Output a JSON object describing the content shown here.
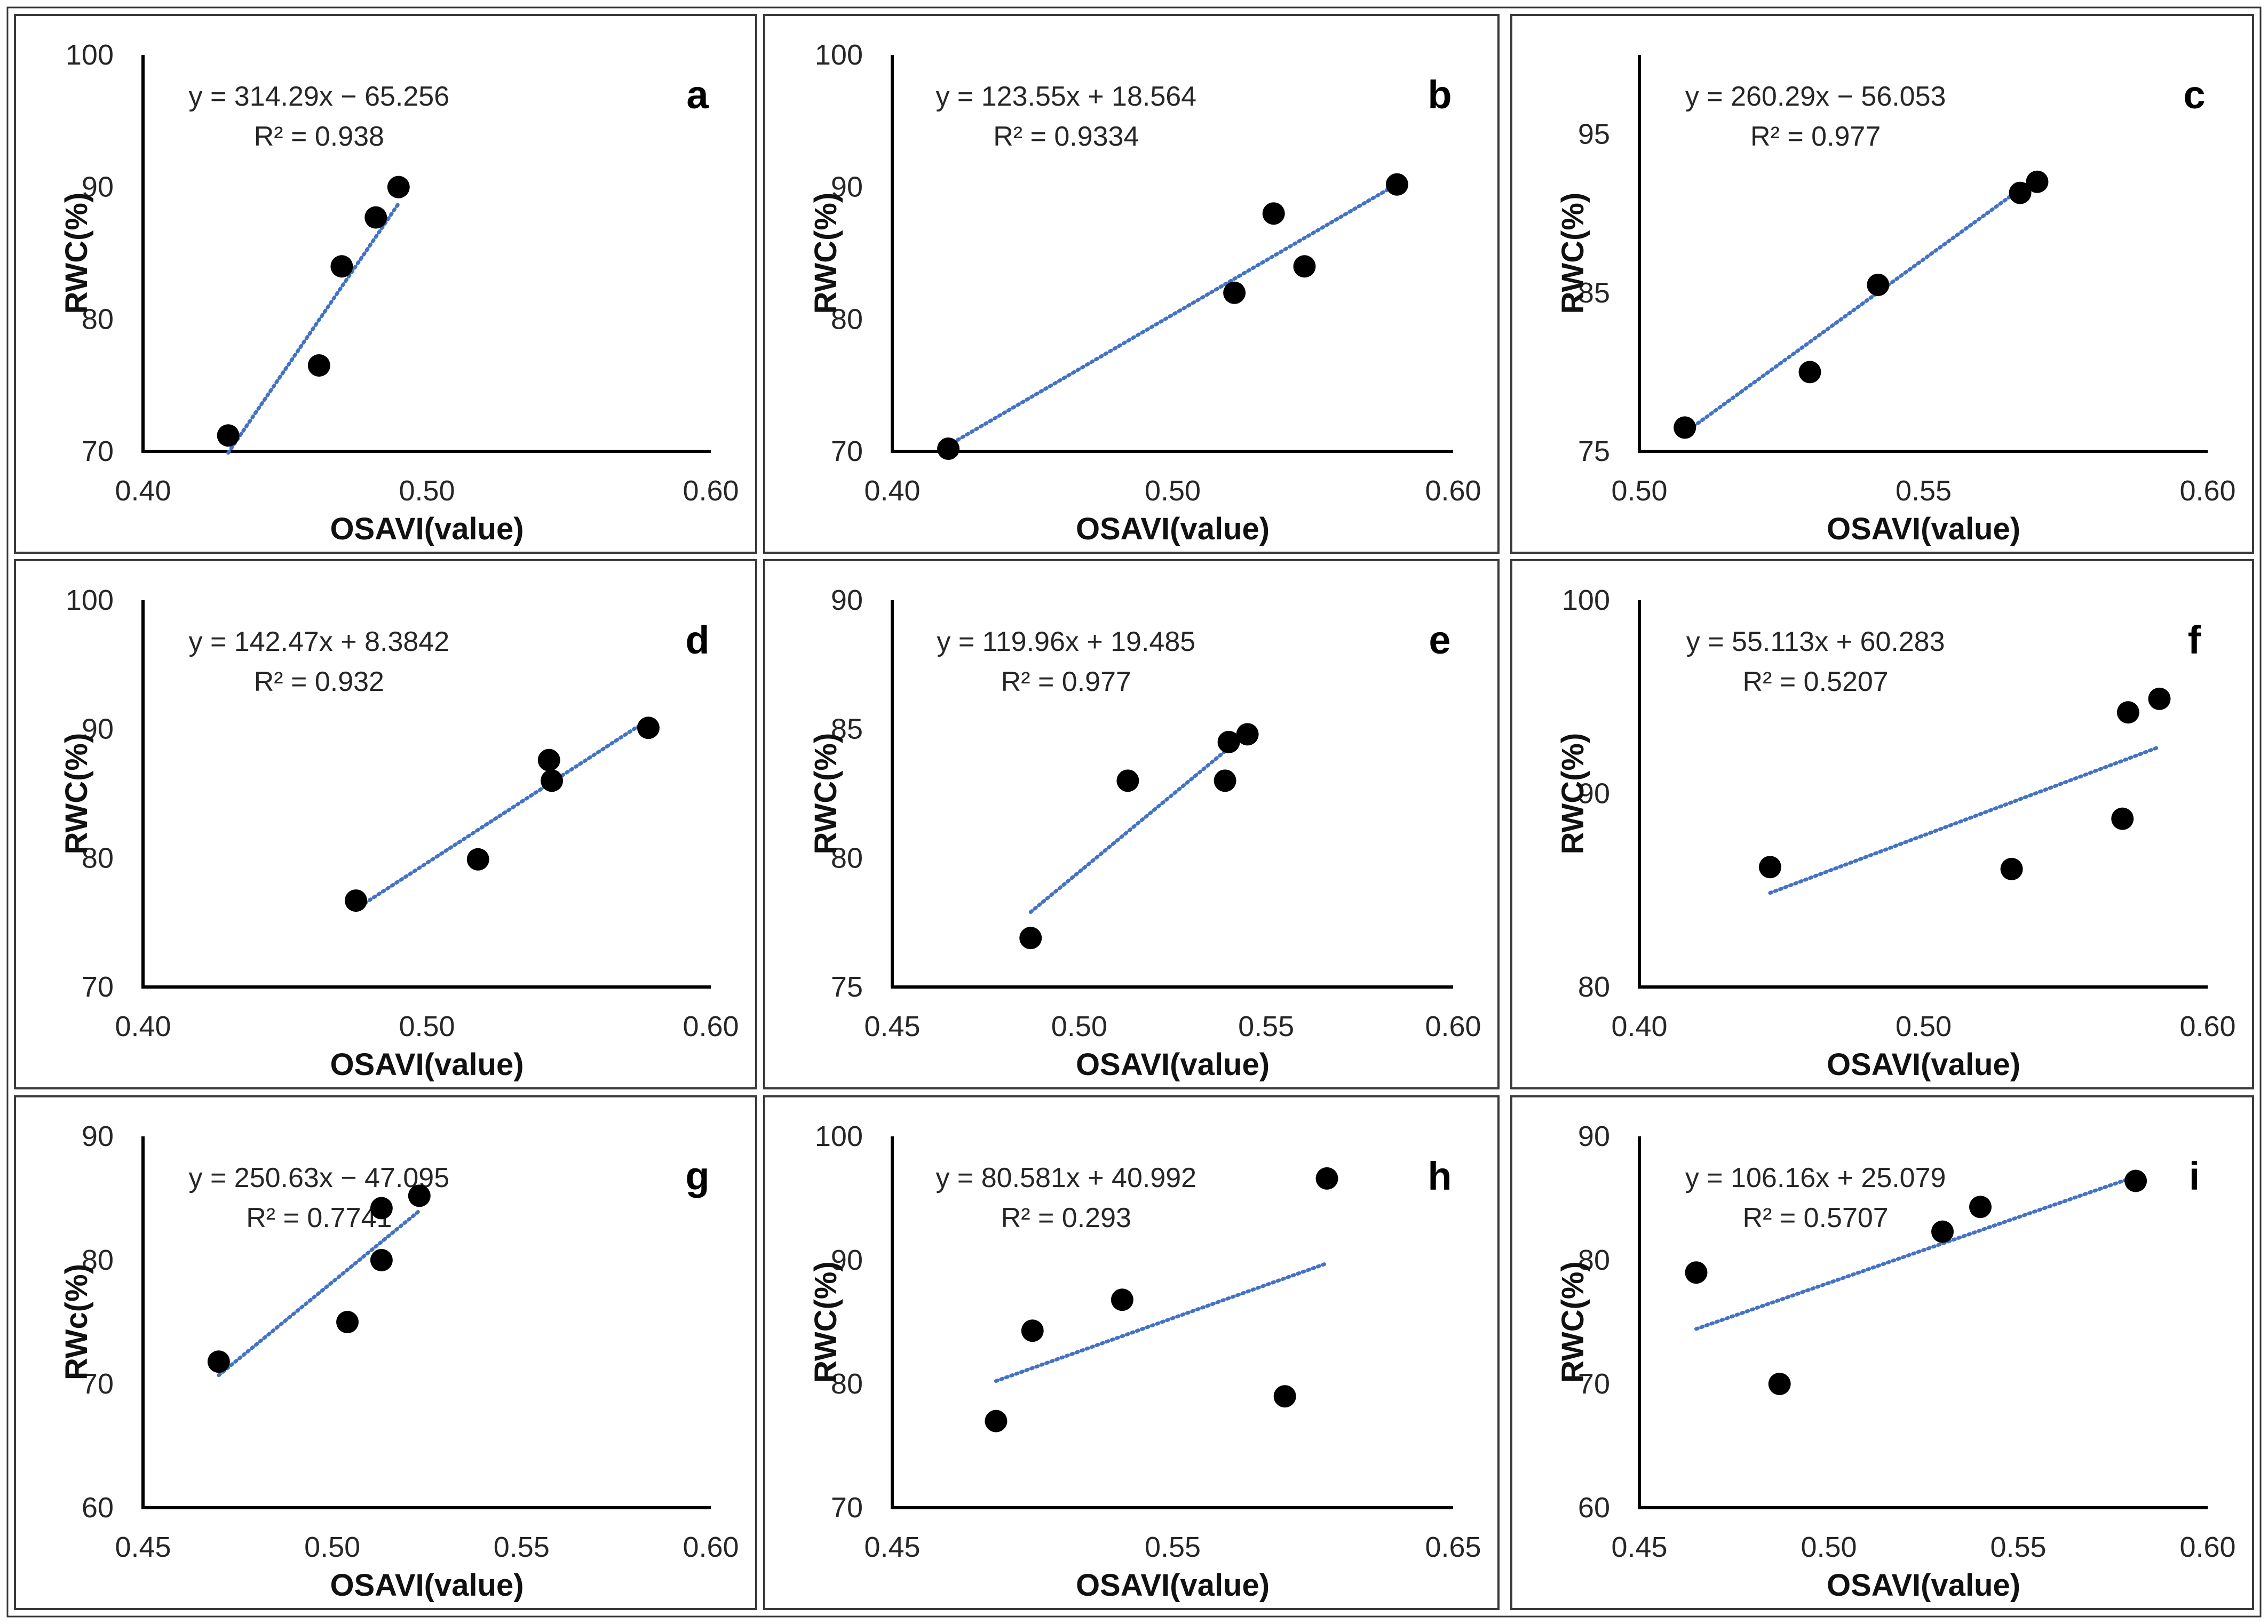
{
  "colors": {
    "points": "#000000",
    "trendline": "#4472c4"
  },
  "chart_data": [
    {
      "panel": "a",
      "type": "scatter",
      "xlabel": "OSAVI(value)",
      "ylabel": "RWC(%)",
      "equation": "y = 314.29x − 65.256",
      "r2": "R² = 0.938",
      "xlim": [
        0.4,
        0.6
      ],
      "ylim": [
        70,
        100
      ],
      "xticks": [
        "0.40",
        "0.50",
        "0.60"
      ],
      "yticks": [
        "70",
        "80",
        "90",
        "100"
      ],
      "x": [
        0.43,
        0.462,
        0.47,
        0.482,
        0.49
      ],
      "y": [
        71.2,
        76.5,
        84,
        87.7,
        90
      ],
      "trend": {
        "slope": 314.29,
        "intercept": -65.256,
        "x_range": [
          0.43,
          0.49
        ]
      }
    },
    {
      "panel": "b",
      "type": "scatter",
      "xlabel": "OSAVI(value)",
      "ylabel": "RWC(%)",
      "equation": "y = 123.55x + 18.564",
      "r2": "R² = 0.9334",
      "xlim": [
        0.4,
        0.6
      ],
      "ylim": [
        70,
        100
      ],
      "xticks": [
        "0.40",
        "0.50",
        "0.60"
      ],
      "yticks": [
        "70",
        "80",
        "90",
        "100"
      ],
      "x": [
        0.42,
        0.522,
        0.536,
        0.547,
        0.58
      ],
      "y": [
        70.2,
        82,
        88,
        84,
        90.2
      ],
      "trend": {
        "slope": 123.55,
        "intercept": 18.564,
        "x_range": [
          0.42,
          0.58
        ]
      }
    },
    {
      "panel": "c",
      "type": "scatter",
      "xlabel": "OSAVI(value)",
      "ylabel": "RWC(%)",
      "equation": "y = 260.29x − 56.053",
      "r2": "R² = 0.977",
      "xlim": [
        0.5,
        0.6
      ],
      "ylim": [
        75,
        100
      ],
      "xticks": [
        "0.50",
        "0.55",
        "0.60"
      ],
      "yticks": [
        "75",
        "85",
        "95"
      ],
      "x": [
        0.508,
        0.53,
        0.542,
        0.567,
        0.57
      ],
      "y": [
        76.5,
        80,
        85.5,
        91.3,
        92
      ],
      "trend": {
        "slope": 260.29,
        "intercept": -56.053,
        "x_range": [
          0.508,
          0.567
        ]
      }
    },
    {
      "panel": "d",
      "type": "scatter",
      "xlabel": "OSAVI(value)",
      "ylabel": "RWC(%)",
      "equation": "y = 142.47x + 8.3842",
      "r2": "R² = 0.932",
      "xlim": [
        0.4,
        0.6
      ],
      "ylim": [
        70,
        100
      ],
      "xticks": [
        "0.40",
        "0.50",
        "0.60"
      ],
      "yticks": [
        "70",
        "80",
        "90",
        "100"
      ],
      "x": [
        0.475,
        0.518,
        0.543,
        0.544,
        0.578
      ],
      "y": [
        76.7,
        79.9,
        87.6,
        86,
        90.1
      ],
      "trend": {
        "slope": 142.47,
        "intercept": 8.3842,
        "x_range": [
          0.475,
          0.578
        ]
      }
    },
    {
      "panel": "e",
      "type": "scatter",
      "xlabel": "OSAVI(value)",
      "ylabel": "RWC(%)",
      "equation": "y = 119.96x + 19.485",
      "r2": "R² = 0.977",
      "xlim": [
        0.45,
        0.6
      ],
      "ylim": [
        75,
        90
      ],
      "xticks": [
        "0.45",
        "0.50",
        "0.55",
        "0.60"
      ],
      "yticks": [
        "75",
        "80",
        "85",
        "90"
      ],
      "x": [
        0.487,
        0.513,
        0.539,
        0.54,
        0.545
      ],
      "y": [
        76.9,
        83,
        83,
        84.5,
        84.8
      ],
      "trend": {
        "slope": 119.96,
        "intercept": 19.485,
        "x_range": [
          0.487,
          0.545
        ]
      }
    },
    {
      "panel": "f",
      "type": "scatter",
      "xlabel": "OSAVI(value)",
      "ylabel": "RWC(%)",
      "equation": "y = 55.113x + 60.283",
      "r2": "R² = 0.5207",
      "xlim": [
        0.4,
        0.6
      ],
      "ylim": [
        80,
        100
      ],
      "xticks": [
        "0.40",
        "0.50",
        "0.60"
      ],
      "yticks": [
        "80",
        "90",
        "100"
      ],
      "x": [
        0.446,
        0.531,
        0.57,
        0.572,
        0.583
      ],
      "y": [
        86.2,
        86.1,
        88.7,
        94.2,
        94.9
      ],
      "trend": {
        "slope": 55.113,
        "intercept": 60.283,
        "x_range": [
          0.446,
          0.583
        ]
      }
    },
    {
      "panel": "g",
      "type": "scatter",
      "xlabel": "OSAVI(value)",
      "ylabel": "RWc(%)",
      "equation": "y = 250.63x − 47.095",
      "r2": "R² = 0.7741",
      "xlim": [
        0.45,
        0.6
      ],
      "ylim": [
        60,
        90
      ],
      "xticks": [
        "0.45",
        "0.50",
        "0.55",
        "0.60"
      ],
      "yticks": [
        "60",
        "70",
        "80",
        "90"
      ],
      "x": [
        0.47,
        0.504,
        0.513,
        0.513,
        0.523
      ],
      "y": [
        71.8,
        75,
        80,
        84.2,
        85.2
      ],
      "trend": {
        "slope": 250.63,
        "intercept": -47.095,
        "x_range": [
          0.47,
          0.523
        ]
      }
    },
    {
      "panel": "h",
      "type": "scatter",
      "xlabel": "OSAVI(value)",
      "ylabel": "RWC(%)",
      "equation": "y = 80.581x + 40.992",
      "r2": "R² = 0.293",
      "xlim": [
        0.45,
        0.65
      ],
      "ylim": [
        70,
        100
      ],
      "xticks": [
        "0.45",
        "0.55",
        "0.65"
      ],
      "yticks": [
        "70",
        "80",
        "90",
        "100"
      ],
      "x": [
        0.487,
        0.5,
        0.532,
        0.59,
        0.605
      ],
      "y": [
        77,
        84.3,
        86.8,
        79,
        96.6
      ],
      "trend": {
        "slope": 80.581,
        "intercept": 40.992,
        "x_range": [
          0.487,
          0.605
        ]
      }
    },
    {
      "panel": "i",
      "type": "scatter",
      "xlabel": "OSAVI(value)",
      "ylabel": "RWC(%)",
      "equation": "y = 106.16x + 25.079",
      "r2": "R² = 0.5707",
      "xlim": [
        0.45,
        0.6
      ],
      "ylim": [
        60,
        90
      ],
      "xticks": [
        "0.45",
        "0.50",
        "0.55",
        "0.60"
      ],
      "yticks": [
        "60",
        "70",
        "80",
        "90"
      ],
      "x": [
        0.465,
        0.487,
        0.53,
        0.54,
        0.581
      ],
      "y": [
        79,
        70,
        82.3,
        84.3,
        86.4
      ],
      "trend": {
        "slope": 106.16,
        "intercept": 25.079,
        "x_range": [
          0.465,
          0.581
        ]
      }
    }
  ]
}
